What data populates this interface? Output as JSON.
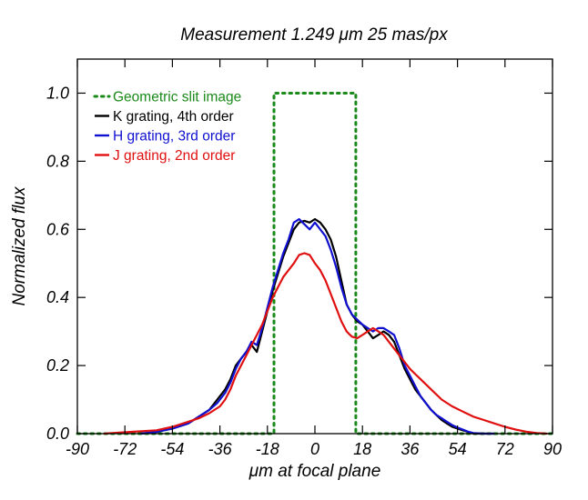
{
  "chart_data": {
    "type": "line",
    "title": "Measurement    1.249 μm   25 mas/px",
    "xlabel": "μm at focal plane",
    "ylabel": "Normalized flux",
    "xlim": [
      -90,
      90
    ],
    "ylim": [
      0.0,
      1.1
    ],
    "xticks": [
      -90,
      -72,
      -54,
      -36,
      -18,
      0,
      18,
      36,
      54,
      72,
      90
    ],
    "yticks": [
      0.0,
      0.2,
      0.4,
      0.6,
      0.8,
      1.0
    ],
    "ytick_labels": [
      "0.0",
      "0.2",
      "0.4",
      "0.6",
      "0.8",
      "1.0"
    ],
    "grid": false,
    "legend_position": "top-left",
    "series": [
      {
        "name": "Geometric slit image",
        "color": "#1a8a1a",
        "style": "dotted",
        "x": [
          -90,
          -15.5,
          -15.5,
          15.5,
          15.5,
          90
        ],
        "y": [
          0,
          0,
          1.0,
          1.0,
          0,
          0
        ]
      },
      {
        "name": "K grating, 4th order",
        "color": "#000000",
        "style": "solid",
        "x": [
          -66,
          -60,
          -54,
          -48,
          -44,
          -40,
          -37,
          -34,
          -32,
          -30,
          -28,
          -26,
          -24,
          -22,
          -20,
          -18,
          -16,
          -14,
          -12,
          -10,
          -8,
          -6,
          -4,
          -2,
          0,
          2,
          4,
          6,
          8,
          10,
          12,
          14,
          16,
          18,
          20,
          22,
          24,
          26,
          28,
          30,
          32,
          34,
          36,
          38,
          40,
          42,
          44,
          46,
          48,
          50,
          52,
          54,
          56,
          58,
          60,
          64,
          68
        ],
        "y": [
          0.0,
          0.005,
          0.015,
          0.03,
          0.05,
          0.07,
          0.1,
          0.13,
          0.16,
          0.2,
          0.22,
          0.24,
          0.26,
          0.24,
          0.3,
          0.36,
          0.42,
          0.47,
          0.52,
          0.56,
          0.6,
          0.62,
          0.625,
          0.62,
          0.63,
          0.62,
          0.6,
          0.57,
          0.52,
          0.45,
          0.38,
          0.35,
          0.33,
          0.32,
          0.3,
          0.28,
          0.29,
          0.3,
          0.29,
          0.27,
          0.23,
          0.19,
          0.16,
          0.13,
          0.11,
          0.09,
          0.07,
          0.055,
          0.04,
          0.03,
          0.02,
          0.015,
          0.01,
          0.005,
          0.0,
          0.0,
          0.0
        ]
      },
      {
        "name": "H grating, 3rd order",
        "color": "#1010d0",
        "style": "solid",
        "x": [
          -66,
          -60,
          -54,
          -48,
          -44,
          -40,
          -37,
          -34,
          -32,
          -30,
          -28,
          -26,
          -24,
          -22,
          -20,
          -18,
          -16,
          -14,
          -12,
          -10,
          -8,
          -6,
          -4,
          -2,
          0,
          2,
          4,
          6,
          8,
          10,
          12,
          14,
          16,
          18,
          20,
          22,
          24,
          26,
          28,
          30,
          32,
          34,
          36,
          38,
          40,
          42,
          44,
          46,
          48,
          50,
          52,
          54,
          56,
          58,
          60,
          64,
          68
        ],
        "y": [
          0.0,
          0.005,
          0.015,
          0.03,
          0.05,
          0.07,
          0.09,
          0.12,
          0.15,
          0.19,
          0.22,
          0.24,
          0.27,
          0.26,
          0.31,
          0.37,
          0.43,
          0.48,
          0.53,
          0.57,
          0.62,
          0.63,
          0.615,
          0.6,
          0.62,
          0.6,
          0.58,
          0.54,
          0.49,
          0.43,
          0.38,
          0.35,
          0.335,
          0.32,
          0.31,
          0.3,
          0.31,
          0.31,
          0.3,
          0.29,
          0.25,
          0.2,
          0.17,
          0.14,
          0.11,
          0.09,
          0.07,
          0.055,
          0.045,
          0.035,
          0.025,
          0.018,
          0.012,
          0.006,
          0.002,
          0.0,
          0.0
        ]
      },
      {
        "name": "J grating, 2nd order",
        "color": "#e01010",
        "style": "solid",
        "x": [
          -80,
          -70,
          -60,
          -54,
          -48,
          -44,
          -40,
          -36,
          -34,
          -32,
          -30,
          -28,
          -26,
          -24,
          -22,
          -20,
          -18,
          -16,
          -14,
          -12,
          -10,
          -8,
          -6,
          -4,
          -2,
          0,
          2,
          4,
          6,
          8,
          10,
          12,
          14,
          16,
          18,
          20,
          22,
          24,
          26,
          28,
          30,
          32,
          34,
          36,
          38,
          40,
          44,
          48,
          52,
          56,
          60,
          64,
          68,
          72,
          76,
          80,
          84,
          88
        ],
        "y": [
          0.0,
          0.005,
          0.01,
          0.02,
          0.035,
          0.045,
          0.06,
          0.08,
          0.1,
          0.13,
          0.17,
          0.2,
          0.23,
          0.26,
          0.29,
          0.32,
          0.36,
          0.4,
          0.43,
          0.46,
          0.48,
          0.5,
          0.525,
          0.53,
          0.525,
          0.5,
          0.48,
          0.45,
          0.41,
          0.37,
          0.33,
          0.3,
          0.285,
          0.28,
          0.29,
          0.3,
          0.31,
          0.3,
          0.29,
          0.27,
          0.25,
          0.23,
          0.21,
          0.19,
          0.175,
          0.16,
          0.13,
          0.1,
          0.08,
          0.065,
          0.05,
          0.04,
          0.03,
          0.02,
          0.012,
          0.006,
          0.002,
          0.0
        ]
      }
    ]
  }
}
